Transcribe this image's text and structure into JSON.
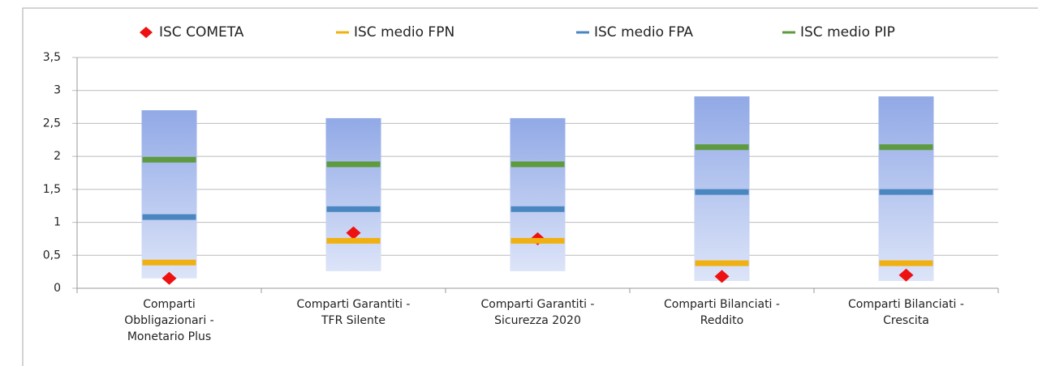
{
  "chart_data": {
    "type": "range_bar",
    "categories": [
      [
        "Comparti",
        "Obbligazionari -",
        "Monetario Plus"
      ],
      [
        "Comparti Garantiti -",
        "TFR Silente"
      ],
      [
        "Comparti Garantiti -",
        "Sicurezza 2020"
      ],
      [
        "Comparti Bilanciati -",
        "Reddito"
      ],
      [
        "Comparti Bilanciati -",
        "Crescita"
      ]
    ],
    "range": {
      "low": [
        0.15,
        0.26,
        0.26,
        0.11,
        0.11
      ],
      "high": [
        2.7,
        2.58,
        2.58,
        2.91,
        2.91
      ],
      "color_top": "#91a9e6",
      "color_bottom": "#dce4f8"
    },
    "series": [
      {
        "name": "ISC COMETA",
        "color": "#ee1111",
        "marker": "diamond",
        "values": [
          0.15,
          0.84,
          0.75,
          0.18,
          0.2
        ]
      },
      {
        "name": "ISC medio FPN",
        "color": "#f0b010",
        "marker": "dash",
        "values": [
          0.39,
          0.72,
          0.72,
          0.38,
          0.38
        ]
      },
      {
        "name": "ISC medio FPA",
        "color": "#4a86c0",
        "marker": "dash",
        "values": [
          1.08,
          1.2,
          1.2,
          1.46,
          1.46
        ]
      },
      {
        "name": "ISC medio PIP",
        "color": "#5e9a3e",
        "marker": "dash",
        "values": [
          1.95,
          1.88,
          1.88,
          2.14,
          2.14
        ]
      }
    ],
    "ylim": [
      0,
      3.5
    ],
    "yticks": [
      0,
      {
        "value": 0.5,
        "label": "0,5"
      },
      1,
      {
        "value": 1.5,
        "label": "1,5"
      },
      2,
      {
        "value": 2.5,
        "label": "2,5"
      },
      3,
      {
        "value": 3.5,
        "label": "3,5"
      }
    ],
    "grid": true,
    "legend": "top"
  }
}
